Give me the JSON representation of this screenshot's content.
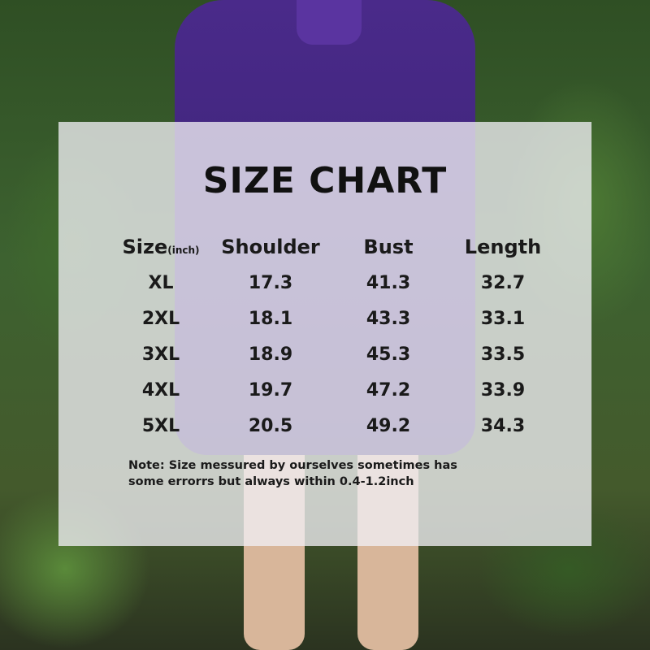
{
  "title": "SIZE CHART",
  "table": {
    "headers": {
      "size": "Size",
      "unit": "(inch)",
      "shoulder": "Shoulder",
      "bust": "Bust",
      "length": "Length"
    },
    "rows": [
      {
        "size": "XL",
        "shoulder": "17.3",
        "bust": "41.3",
        "length": "32.7"
      },
      {
        "size": "2XL",
        "shoulder": "18.1",
        "bust": "43.3",
        "length": "33.1"
      },
      {
        "size": "3XL",
        "shoulder": "18.9",
        "bust": "45.3",
        "length": "33.5"
      },
      {
        "size": "4XL",
        "shoulder": "19.7",
        "bust": "47.2",
        "length": "33.9"
      },
      {
        "size": "5XL",
        "shoulder": "20.5",
        "bust": "49.2",
        "length": "34.3"
      }
    ]
  },
  "note": {
    "line1": "Note:  Size messured by ourselves sometimes has",
    "line2": "some errorrs but always within 0.4-1.2inch"
  }
}
